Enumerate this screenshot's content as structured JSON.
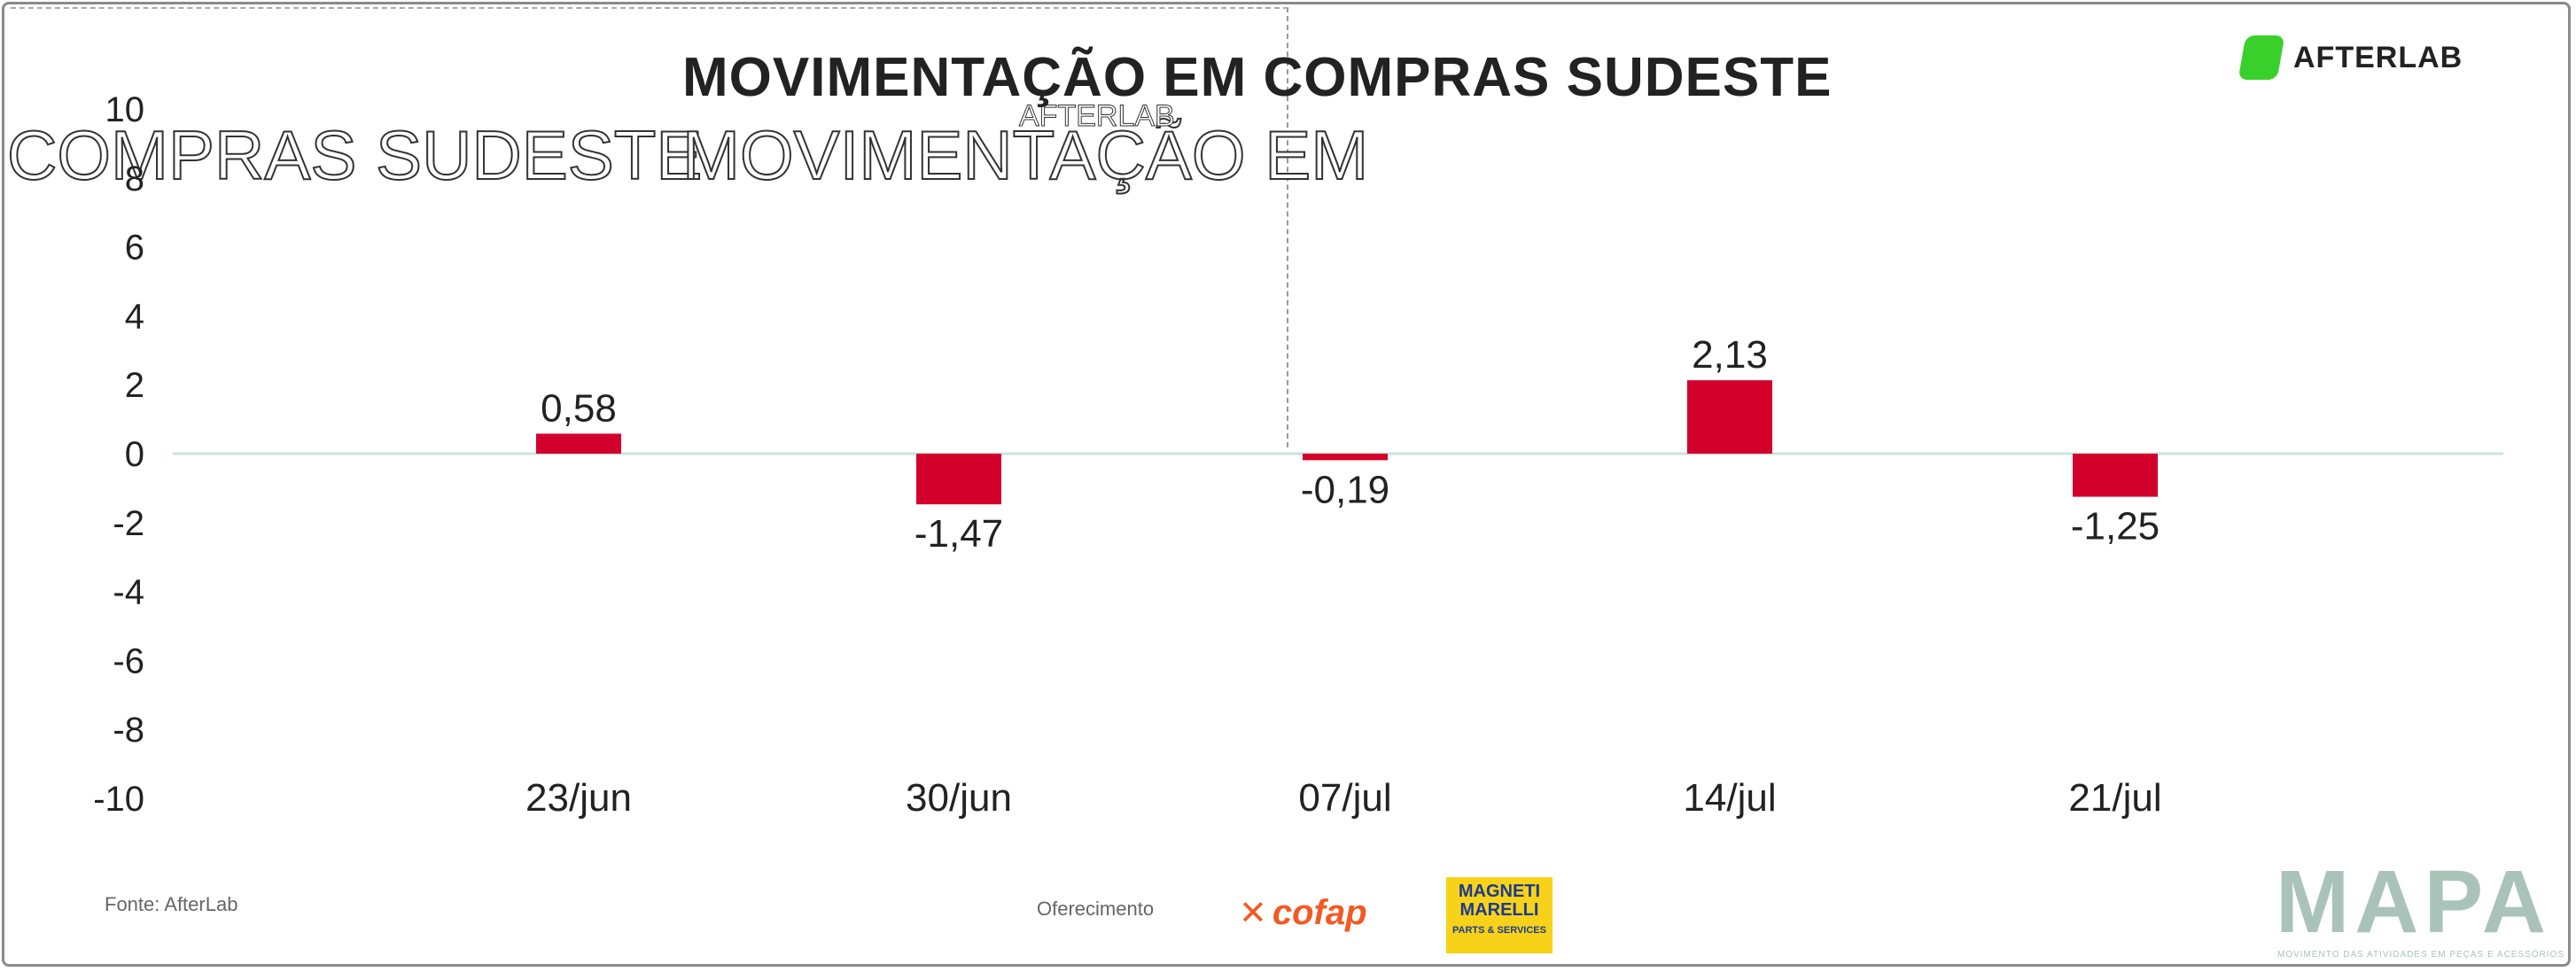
{
  "header": {
    "title": "MOVIMENTAÇÃO EM COMPRAS SUDESTE",
    "ghost_left": "COMPRAS SUDESTE",
    "ghost_right": "MOVIMENTAÇÃO EM",
    "ghost_small": "AFTERLAB",
    "logo_text": "AFTERLAB"
  },
  "footer": {
    "source": "Fonte: AfterLab",
    "sponsor_label": "Oferecimento",
    "sponsor_cofap": "cofap",
    "sponsor_magneti_1": "MAGNETI",
    "sponsor_magneti_2": "MARELLI",
    "sponsor_magneti_3": "PARTS & SERVICES",
    "brand": "MAPA",
    "brand_tagline": "MOVIMENTO DAS ATIVIDADES EM PEÇAS E ACESSÓRIOS"
  },
  "colors": {
    "bar": "#d2002a",
    "zero_line": "#cfe0e0",
    "text": "#222222"
  },
  "chart_data": {
    "type": "bar",
    "title": "MOVIMENTAÇÃO EM COMPRAS SUDESTE",
    "xlabel": "",
    "ylabel": "",
    "categories": [
      "23/jun",
      "30/jun",
      "07/jul",
      "14/jul",
      "21/jul"
    ],
    "values": [
      0.58,
      -1.47,
      -0.19,
      2.13,
      -1.25
    ],
    "value_labels": [
      "0,58",
      "-1,47",
      "-0,19",
      "2,13",
      "-1,25"
    ],
    "ylim": [
      -10,
      10
    ],
    "yticks": [
      10,
      8,
      6,
      4,
      2,
      0,
      -2,
      -4,
      -6,
      -8,
      -10
    ],
    "grid": false,
    "legend": "none"
  }
}
